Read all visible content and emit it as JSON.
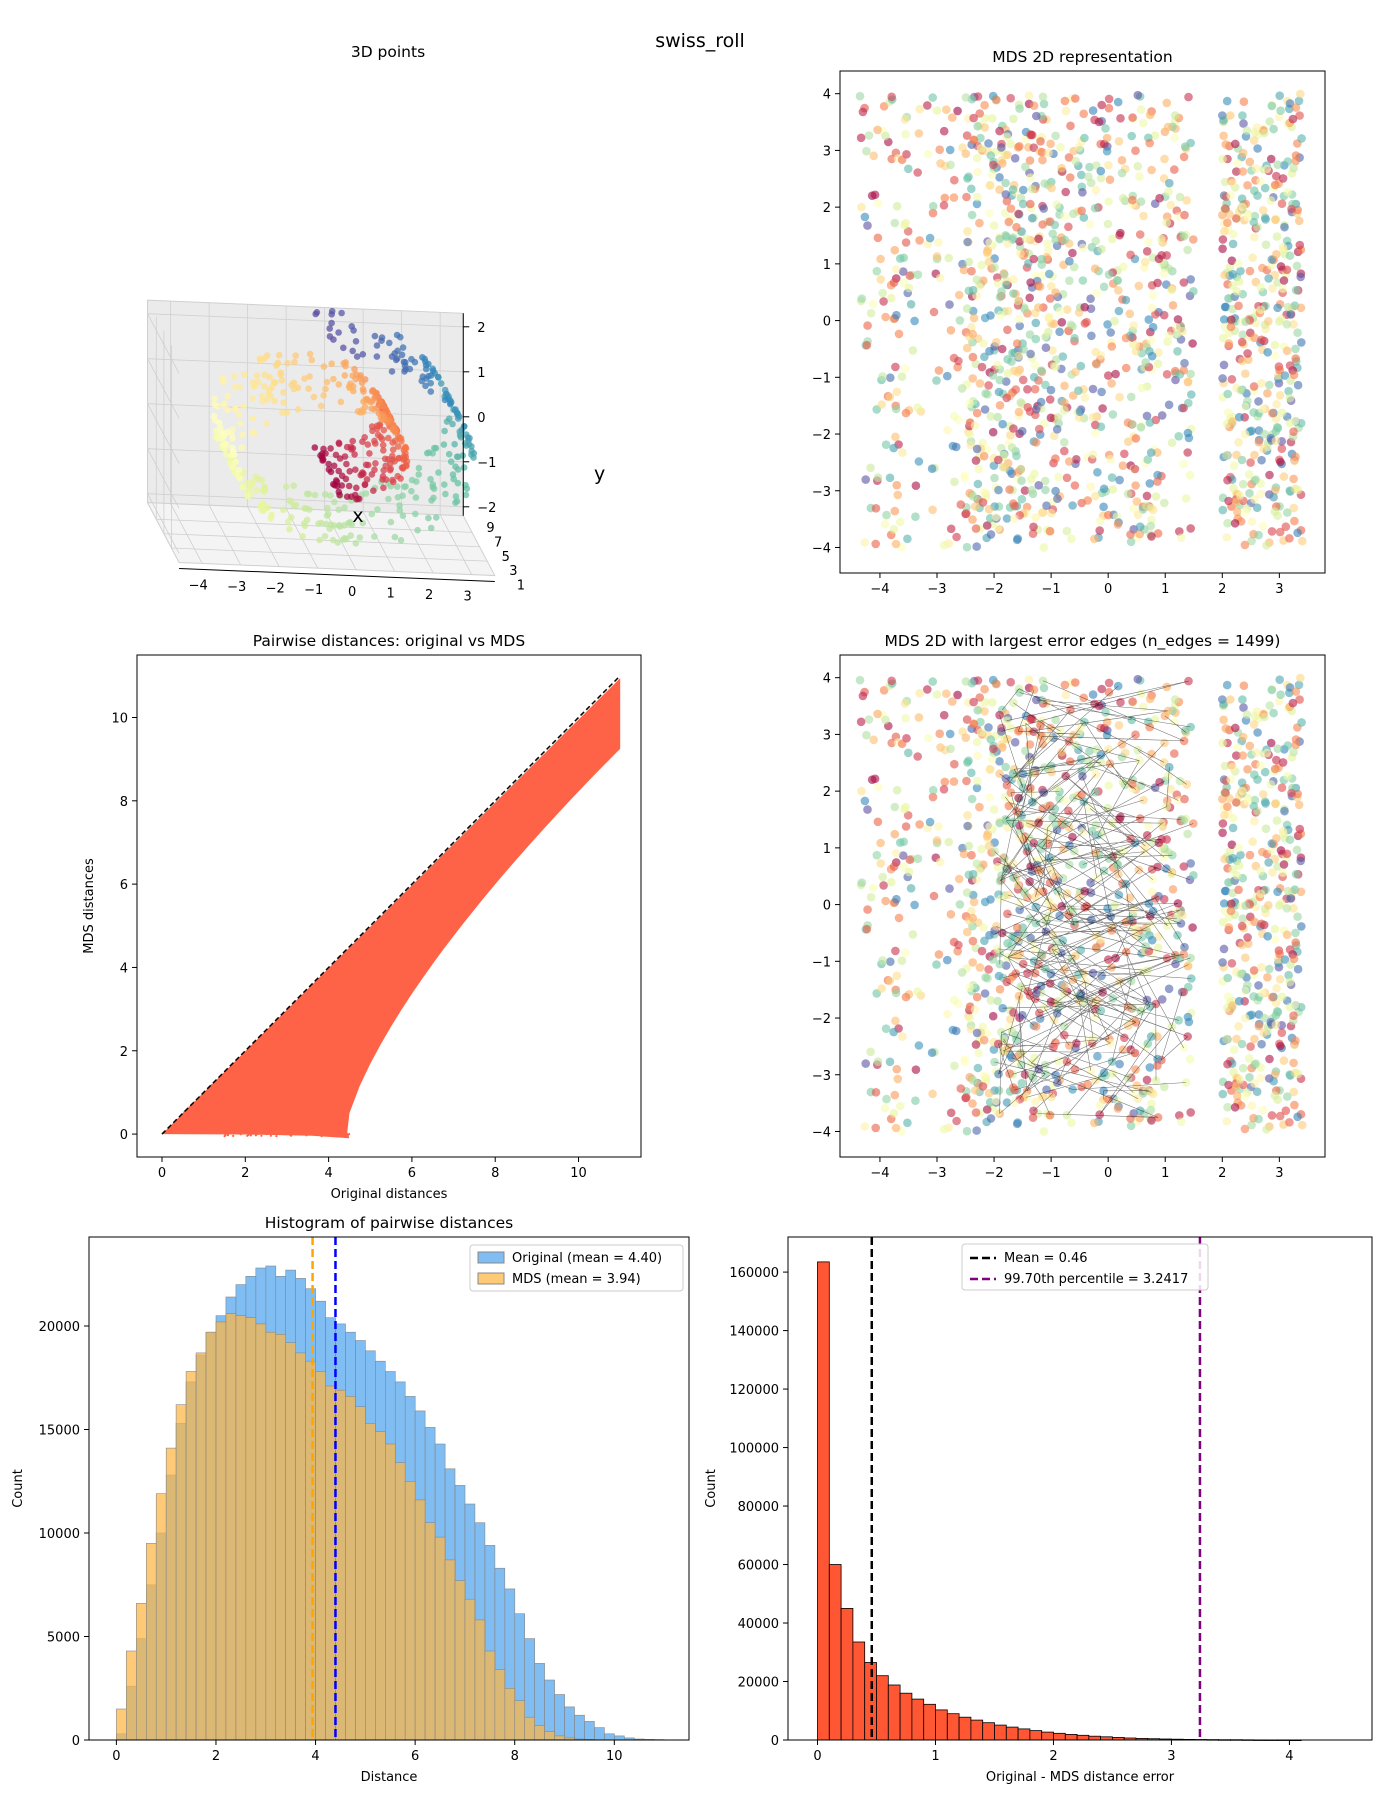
{
  "figure": {
    "title": "swiss_roll"
  },
  "chart_data": [
    {
      "id": "points3d",
      "type": "scatter",
      "title": "3D points",
      "xlabel": "x",
      "ylabel": "y",
      "xticks": [
        -4,
        -3,
        -2,
        -1,
        0,
        1,
        2,
        3
      ],
      "yticks": [
        1,
        3,
        5,
        7,
        9
      ],
      "zticks": [
        -2,
        -1,
        0,
        1,
        2
      ],
      "xlim": [
        -4.6,
        3.6
      ],
      "zlim": [
        -2.2,
        2.3
      ],
      "colormap": "Spectral",
      "n_points": 1500
    },
    {
      "id": "mds2d",
      "type": "scatter",
      "title": "MDS 2D representation",
      "xlim": [
        -4.7,
        3.8
      ],
      "ylim": [
        -4.45,
        4.4
      ],
      "xticks": [
        -4,
        -3,
        -2,
        -1,
        0,
        1,
        2,
        3
      ],
      "yticks": [
        -4,
        -3,
        -2,
        -1,
        0,
        1,
        2,
        3,
        4
      ],
      "x_range": [
        -4.4,
        3.4
      ],
      "y_range": [
        -4.05,
        4.0
      ],
      "colormap": "Spectral",
      "grid": false
    },
    {
      "id": "pairwise",
      "type": "scatter",
      "title": "Pairwise distances: original vs MDS",
      "xlabel": "Original distances",
      "ylabel": "MDS distances",
      "xlim": [
        -0.6,
        11.5
      ],
      "ylim": [
        -0.55,
        11.5
      ],
      "xticks": [
        0,
        2,
        4,
        6,
        8,
        10
      ],
      "yticks": [
        0,
        2,
        4,
        6,
        8,
        10
      ],
      "color": "#ff6347",
      "reference_line": [
        [
          0,
          0
        ],
        [
          11,
          11
        ]
      ]
    },
    {
      "id": "edges",
      "type": "scatter",
      "title": "MDS 2D with largest error edges (n_edges = 1499)",
      "xlim": [
        -4.7,
        3.8
      ],
      "ylim": [
        -4.45,
        4.4
      ],
      "xticks": [
        -4,
        -3,
        -2,
        -1,
        0,
        1,
        2,
        3
      ],
      "yticks": [
        -4,
        -3,
        -2,
        -1,
        0,
        1,
        2,
        3,
        4
      ],
      "n_edges": 1499,
      "colormap": "Spectral"
    },
    {
      "id": "hist_dist",
      "type": "bar",
      "title": "Histogram of pairwise distances",
      "xlabel": "Distance",
      "ylabel": "Count",
      "xlim": [
        -0.55,
        11.5
      ],
      "ylim": [
        0,
        24300
      ],
      "xticks": [
        0,
        2,
        4,
        6,
        8,
        10
      ],
      "yticks": [
        0,
        5000,
        10000,
        15000,
        20000
      ],
      "bin_start": 0,
      "bin_width": 0.2,
      "series": [
        {
          "name": "Original (mean = 4.40)",
          "color": "#4da3ee",
          "mean": 4.4,
          "mean_color": "#0000ff",
          "values": [
            300,
            2600,
            4900,
            7500,
            10000,
            12800,
            15300,
            17300,
            18600,
            19700,
            20500,
            21400,
            22000,
            22400,
            22800,
            22900,
            22400,
            22700,
            22300,
            21800,
            21200,
            20400,
            20100,
            19700,
            19300,
            18800,
            18300,
            17800,
            17300,
            16600,
            15900,
            15100,
            14300,
            13100,
            12300,
            11400,
            10500,
            9400,
            8300,
            7300,
            6100,
            4900,
            3700,
            2900,
            2200,
            1600,
            1200,
            900,
            600,
            300,
            200,
            100,
            50,
            30,
            20
          ]
        },
        {
          "name": "MDS (mean = 3.94)",
          "color": "#ffb642",
          "mean": 3.94,
          "mean_color": "#ffa500",
          "values": [
            1500,
            4300,
            6600,
            9500,
            11900,
            14100,
            16200,
            17800,
            18700,
            19700,
            20200,
            20600,
            20500,
            20400,
            20100,
            19700,
            19600,
            19200,
            18700,
            18300,
            17800,
            17100,
            16900,
            16600,
            16100,
            15300,
            14900,
            14300,
            13400,
            12500,
            11600,
            10500,
            9800,
            8700,
            7700,
            6800,
            5800,
            4300,
            3400,
            2500,
            1900,
            1100,
            700,
            400,
            200,
            100,
            50,
            30,
            10,
            5,
            0,
            0,
            0,
            0,
            0
          ]
        }
      ],
      "legend": "top-right"
    },
    {
      "id": "hist_err",
      "type": "bar",
      "xlabel": "Original - MDS distance error",
      "ylabel": "Count",
      "xlim": [
        -0.25,
        4.7
      ],
      "ylim": [
        0,
        172000
      ],
      "xticks": [
        0,
        1,
        2,
        3,
        4
      ],
      "yticks": [
        0,
        20000,
        40000,
        60000,
        80000,
        100000,
        120000,
        140000,
        160000
      ],
      "bin_start": 0,
      "bin_width": 0.1,
      "color": "#ff5733",
      "values": [
        163500,
        60000,
        45000,
        33500,
        26500,
        22000,
        18800,
        16000,
        14000,
        12200,
        10300,
        9000,
        7800,
        6800,
        5900,
        5100,
        4400,
        3800,
        3200,
        2700,
        2300,
        1900,
        1600,
        1300,
        1100,
        900,
        700,
        550,
        450,
        350,
        280,
        220,
        180,
        140,
        110,
        90,
        70,
        50,
        40,
        25,
        15
      ],
      "lines": [
        {
          "name": "Mean = 0.46",
          "value": 0.46,
          "color": "#000000"
        },
        {
          "name": "99.70th percentile = 3.2417",
          "value": 3.2417,
          "color": "#800080"
        }
      ],
      "legend": "top-center"
    }
  ]
}
